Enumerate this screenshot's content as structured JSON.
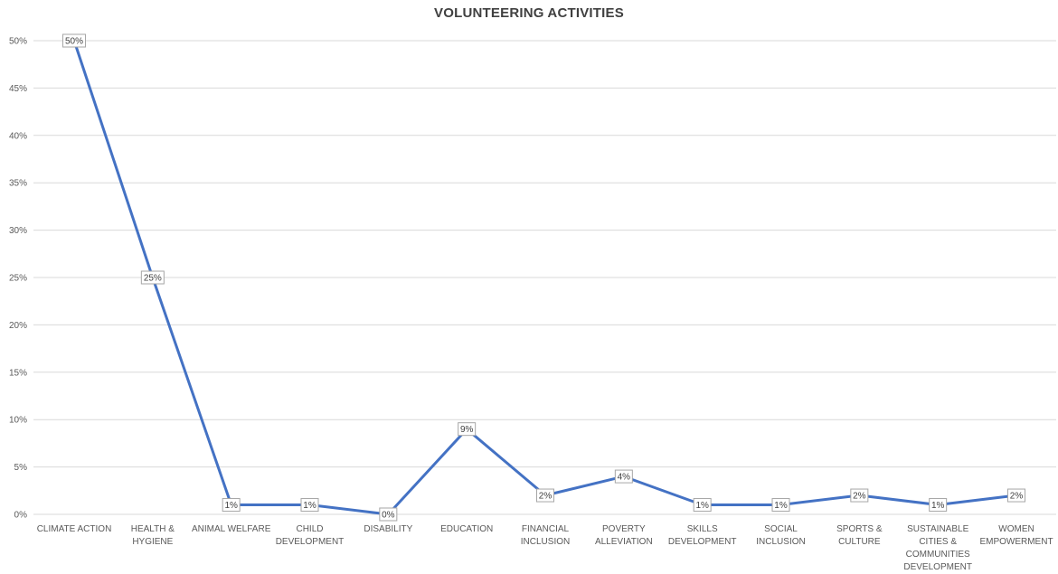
{
  "chart_data": {
    "type": "line",
    "title": "VOLUNTEERING ACTIVITIES",
    "xlabel": "",
    "ylabel": "",
    "categories": [
      "CLIMATE ACTION",
      "HEALTH & HYGIENE",
      "ANIMAL WELFARE",
      "CHILD DEVELOPMENT",
      "DISABILITY",
      "EDUCATION",
      "FINANCIAL INCLUSION",
      "POVERTY ALLEVIATION",
      "SKILLS DEVELOPMENT",
      "SOCIAL INCLUSION",
      "SPORTS & CULTURE",
      "SUSTAINABLE CITIES & COMMUNITIES DEVELOPMENT",
      "WOMEN EMPOWERMENT"
    ],
    "category_label_lines": [
      [
        "CLIMATE ACTION"
      ],
      [
        "HEALTH &",
        "HYGIENE"
      ],
      [
        "ANIMAL WELFARE"
      ],
      [
        "CHILD",
        "DEVELOPMENT"
      ],
      [
        "DISABILITY"
      ],
      [
        "EDUCATION"
      ],
      [
        "FINANCIAL",
        "INCLUSION"
      ],
      [
        "POVERTY",
        "ALLEVIATION"
      ],
      [
        "SKILLS",
        "DEVELOPMENT"
      ],
      [
        "SOCIAL",
        "INCLUSION"
      ],
      [
        "SPORTS &",
        "CULTURE"
      ],
      [
        "SUSTAINABLE",
        "CITIES &",
        "COMMUNITIES",
        "DEVELOPMENT"
      ],
      [
        "WOMEN",
        "EMPOWERMENT"
      ]
    ],
    "series": [
      {
        "values": [
          50,
          25,
          1,
          1,
          0,
          9,
          2,
          4,
          1,
          1,
          2,
          1,
          2
        ],
        "data_labels": [
          "50%",
          "25%",
          "1%",
          "1%",
          "0%",
          "9%",
          "2%",
          "4%",
          "1%",
          "1%",
          "2%",
          "1%",
          "2%"
        ],
        "color": "#4472c4"
      }
    ],
    "ylim": [
      0,
      50
    ],
    "yticks": [
      0,
      5,
      10,
      15,
      20,
      25,
      30,
      35,
      40,
      45,
      50
    ],
    "ytick_labels": [
      "0%",
      "5%",
      "10%",
      "15%",
      "20%",
      "25%",
      "30%",
      "35%",
      "40%",
      "45%",
      "50%"
    ],
    "grid": true,
    "legend": "none",
    "colors": {
      "line": "#4472c4",
      "grid": "#d9d9d9",
      "text": "#595959",
      "title": "#404040"
    }
  }
}
